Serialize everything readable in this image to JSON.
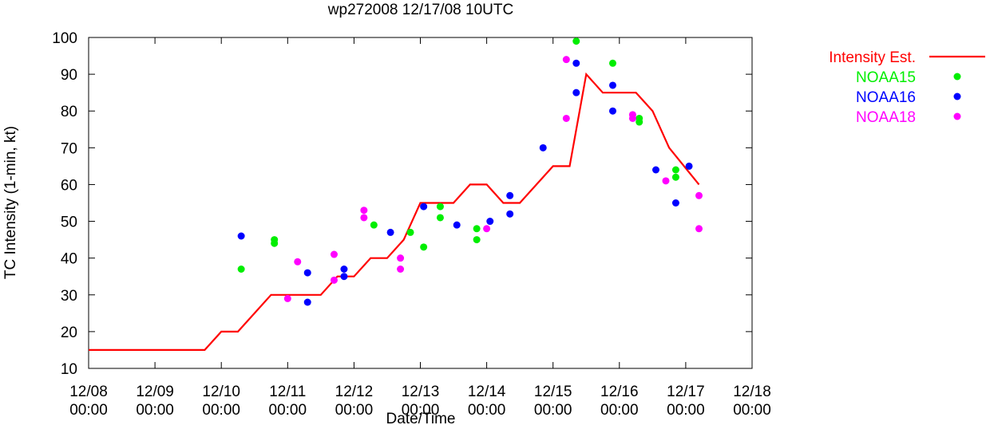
{
  "chart_data": {
    "type": "line",
    "title": "wp272008 12/17/08 10UTC",
    "xlabel": "Date/Time",
    "ylabel": "TC Intensity (1-min, kt)",
    "ylim": [
      10,
      100
    ],
    "xlim": [
      0,
      10
    ],
    "x_ticks": [
      {
        "x": 0,
        "date": "12/08",
        "time": "00:00"
      },
      {
        "x": 1,
        "date": "12/09",
        "time": "00:00"
      },
      {
        "x": 2,
        "date": "12/10",
        "time": "00:00"
      },
      {
        "x": 3,
        "date": "12/11",
        "time": "00:00"
      },
      {
        "x": 4,
        "date": "12/12",
        "time": "00:00"
      },
      {
        "x": 5,
        "date": "12/13",
        "time": "00:00"
      },
      {
        "x": 6,
        "date": "12/14",
        "time": "00:00"
      },
      {
        "x": 7,
        "date": "12/15",
        "time": "00:00"
      },
      {
        "x": 8,
        "date": "12/16",
        "time": "00:00"
      },
      {
        "x": 9,
        "date": "12/17",
        "time": "00:00"
      },
      {
        "x": 10,
        "date": "12/18",
        "time": "00:00"
      }
    ],
    "y_ticks": [
      10,
      20,
      30,
      40,
      50,
      60,
      70,
      80,
      90,
      100
    ],
    "grid": false,
    "legend_position": "outside-right",
    "series": [
      {
        "name": "Intensity Est.",
        "kind": "line",
        "color": "#ff0000",
        "points": [
          [
            0,
            15
          ],
          [
            1.75,
            15
          ],
          [
            2,
            20
          ],
          [
            2.25,
            20
          ],
          [
            2.75,
            30
          ],
          [
            3.5,
            30
          ],
          [
            3.75,
            35
          ],
          [
            4,
            35
          ],
          [
            4.25,
            40
          ],
          [
            4.5,
            40
          ],
          [
            4.75,
            45
          ],
          [
            5,
            55
          ],
          [
            5.5,
            55
          ],
          [
            5.75,
            60
          ],
          [
            6,
            60
          ],
          [
            6.25,
            55
          ],
          [
            6.5,
            55
          ],
          [
            7,
            65
          ],
          [
            7.25,
            65
          ],
          [
            7.5,
            90
          ],
          [
            7.75,
            85
          ],
          [
            8.25,
            85
          ],
          [
            8.5,
            80
          ],
          [
            8.75,
            70
          ],
          [
            9.2,
            60
          ]
        ]
      },
      {
        "name": "NOAA15",
        "kind": "points",
        "color": "#00ee00",
        "points": [
          [
            2.3,
            37
          ],
          [
            2.8,
            45
          ],
          [
            2.8,
            44
          ],
          [
            4.3,
            49
          ],
          [
            4.85,
            47
          ],
          [
            5.05,
            43
          ],
          [
            5.3,
            54
          ],
          [
            5.3,
            51
          ],
          [
            5.85,
            48
          ],
          [
            5.85,
            45
          ],
          [
            7.35,
            99
          ],
          [
            7.9,
            93
          ],
          [
            8.3,
            78
          ],
          [
            8.3,
            77
          ],
          [
            8.85,
            64
          ],
          [
            8.85,
            62
          ]
        ]
      },
      {
        "name": "NOAA16",
        "kind": "points",
        "color": "#0000ff",
        "points": [
          [
            2.3,
            46
          ],
          [
            3.3,
            36
          ],
          [
            3.3,
            28
          ],
          [
            3.85,
            37
          ],
          [
            3.85,
            35
          ],
          [
            4.55,
            47
          ],
          [
            5.05,
            54
          ],
          [
            5.55,
            49
          ],
          [
            6.05,
            50
          ],
          [
            6.35,
            57
          ],
          [
            6.35,
            52
          ],
          [
            6.85,
            70
          ],
          [
            7.35,
            93
          ],
          [
            7.35,
            85
          ],
          [
            7.9,
            87
          ],
          [
            7.9,
            80
          ],
          [
            8.55,
            64
          ],
          [
            8.85,
            55
          ],
          [
            9.05,
            65
          ]
        ]
      },
      {
        "name": "NOAA18",
        "kind": "points",
        "color": "#ff00ff",
        "points": [
          [
            3.0,
            29
          ],
          [
            3.15,
            39
          ],
          [
            3.7,
            41
          ],
          [
            3.7,
            34
          ],
          [
            4.15,
            53
          ],
          [
            4.15,
            51
          ],
          [
            4.7,
            40
          ],
          [
            4.7,
            37
          ],
          [
            6.0,
            48
          ],
          [
            7.2,
            94
          ],
          [
            7.2,
            78
          ],
          [
            8.2,
            79
          ],
          [
            8.2,
            78
          ],
          [
            8.7,
            61
          ],
          [
            9.2,
            57
          ],
          [
            9.2,
            48
          ]
        ]
      }
    ]
  }
}
